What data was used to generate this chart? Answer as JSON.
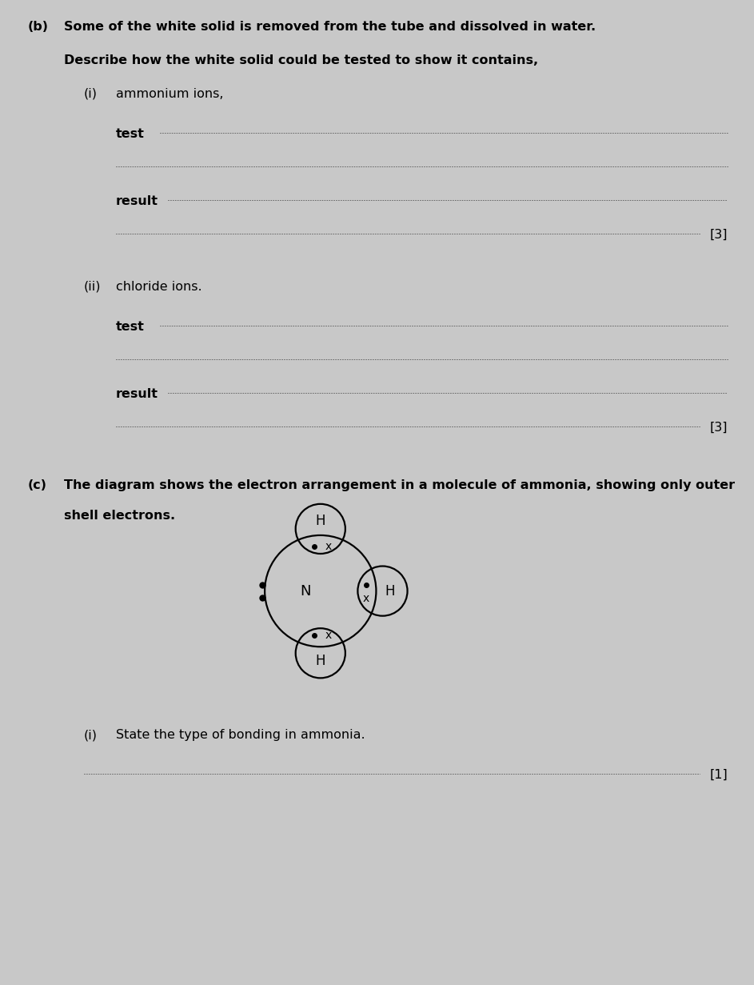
{
  "bg_color": "#c8c8c8",
  "text_color": "#000000",
  "page_width": 9.43,
  "page_height": 12.31,
  "section_b_label": "(b)",
  "section_b_text1": "Some of the white solid is removed from the tube and dissolved in water.",
  "section_b_text2": "Describe how the white solid could be tested to show it contains,",
  "subsec_i_label": "(i)",
  "subsec_i_text": "ammonium ions,",
  "test_label": "test",
  "result_label": "result",
  "mark_3a": "[3]",
  "subsec_ii_label": "(ii)",
  "subsec_ii_text": "chloride ions.",
  "mark_3b": "[3]",
  "section_c_label": "(c)",
  "section_c_text1": "The diagram shows the electron arrangement in a molecule of ammonia, showing only outer",
  "section_c_text2": "shell electrons.",
  "subsec_ci_label": "(i)",
  "subsec_ci_text": "State the type of bonding in ammonia.",
  "mark_1": "[1]",
  "dotted_color": "#666666"
}
